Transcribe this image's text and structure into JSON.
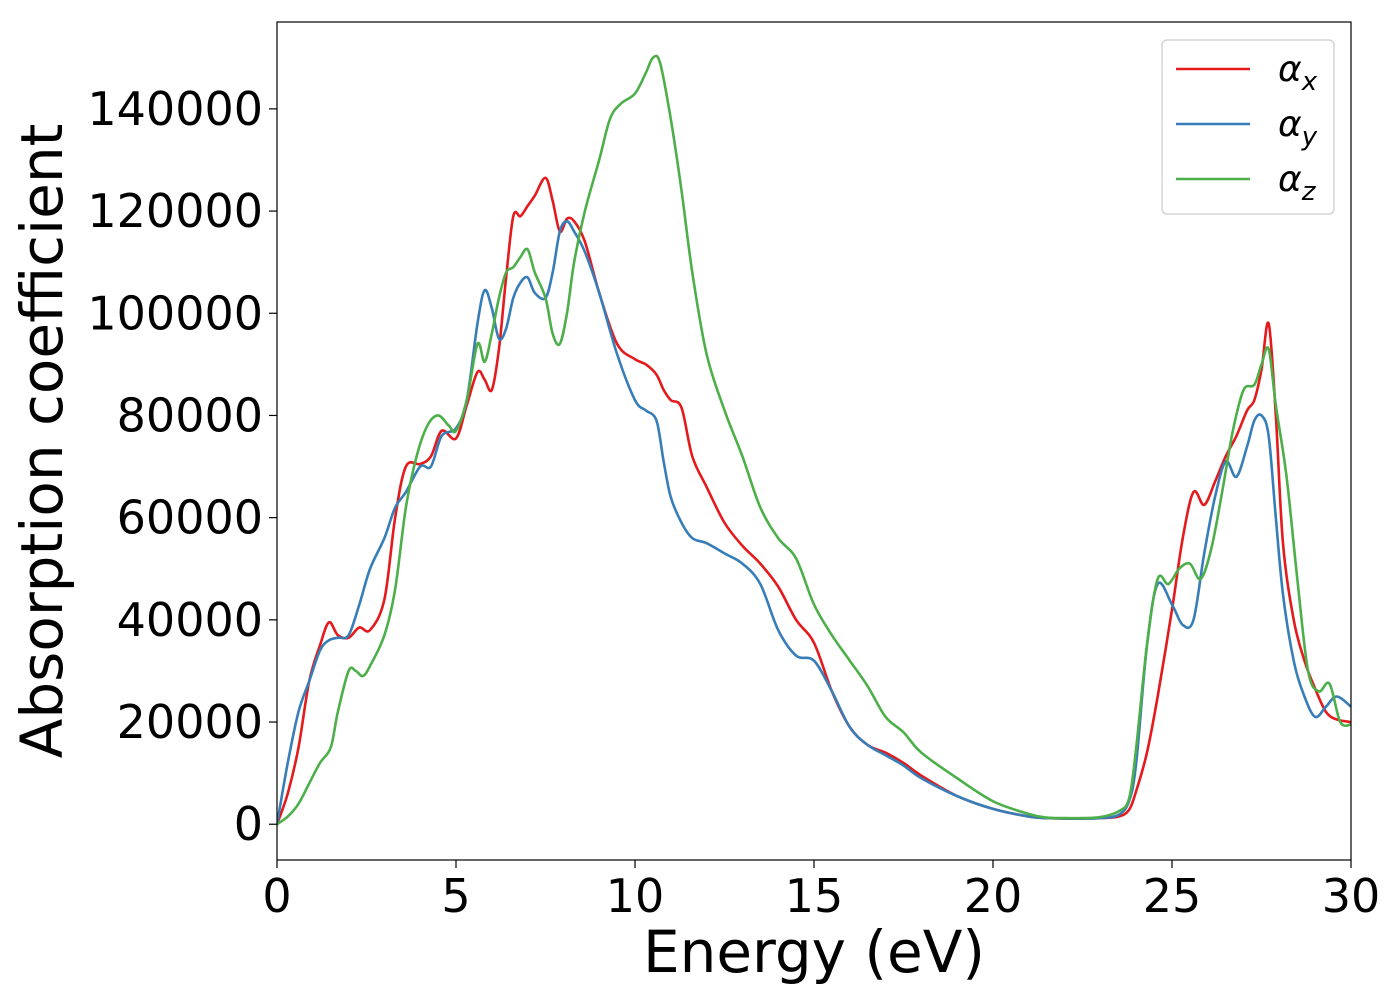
{
  "chart_data": {
    "type": "line",
    "title": "",
    "xlabel": "Energy (eV)",
    "ylabel": "Absorption coefficient",
    "xlim": [
      0,
      30
    ],
    "ylim": [
      -7000,
      157000
    ],
    "xticks": [
      0,
      5,
      10,
      15,
      20,
      25,
      30
    ],
    "xtick_labels": [
      "0",
      "5",
      "10",
      "15",
      "20",
      "25",
      "30"
    ],
    "yticks": [
      0,
      20000,
      40000,
      60000,
      80000,
      100000,
      120000,
      140000
    ],
    "ytick_labels": [
      "0",
      "20000",
      "40000",
      "60000",
      "80000",
      "100000",
      "120000",
      "140000"
    ],
    "grid": false,
    "legend": {
      "placement": "top-right"
    },
    "series": [
      {
        "name": "αx",
        "legend_base": "α",
        "legend_sub": "x",
        "color": "#e41a1c",
        "x": [
          0,
          0.3,
          0.6,
          0.9,
          1.2,
          1.45,
          1.7,
          2.0,
          2.3,
          2.6,
          3.0,
          3.3,
          3.6,
          4.0,
          4.3,
          4.6,
          5.0,
          5.3,
          5.6,
          5.8,
          6.0,
          6.2,
          6.4,
          6.6,
          6.8,
          7.0,
          7.2,
          7.5,
          7.7,
          7.9,
          8.1,
          8.3,
          8.6,
          9.0,
          9.5,
          10.0,
          10.3,
          10.6,
          10.8,
          11.0,
          11.3,
          11.6,
          12.0,
          12.5,
          13.0,
          13.5,
          14.0,
          14.5,
          15.0,
          15.5,
          16.0,
          16.5,
          17.0,
          17.5,
          18.0,
          19.0,
          20.0,
          21.0,
          21.5,
          22.0,
          22.5,
          23.0,
          23.5,
          23.8,
          24.0,
          24.3,
          24.6,
          25.0,
          25.3,
          25.6,
          25.9,
          26.2,
          26.5,
          26.8,
          27.1,
          27.3,
          27.5,
          27.7,
          27.9,
          28.1,
          28.4,
          28.7,
          29.0,
          29.3,
          29.6,
          30.0
        ],
        "y": [
          0,
          6000,
          15000,
          28000,
          35000,
          39500,
          37000,
          36500,
          38500,
          38000,
          44000,
          60000,
          70000,
          70500,
          72000,
          77000,
          75500,
          82000,
          88500,
          87000,
          85000,
          93000,
          107000,
          119000,
          119000,
          121000,
          123000,
          126500,
          122000,
          116000,
          118500,
          118000,
          114000,
          104000,
          94000,
          91000,
          90000,
          88000,
          85000,
          83000,
          81500,
          72000,
          66000,
          59000,
          54500,
          51000,
          46500,
          40000,
          35500,
          26000,
          19000,
          15500,
          14000,
          12000,
          9500,
          5500,
          3000,
          1500,
          1200,
          1100,
          1100,
          1200,
          1500,
          2800,
          6500,
          14000,
          25000,
          42000,
          56000,
          65000,
          62500,
          67000,
          72000,
          76000,
          81000,
          83000,
          89000,
          98000,
          80000,
          55000,
          40000,
          32000,
          26500,
          22000,
          20500,
          20000
        ]
      },
      {
        "name": "αy",
        "legend_base": "α",
        "legend_sub": "y",
        "color": "#377eb8",
        "x": [
          0,
          0.3,
          0.6,
          0.9,
          1.2,
          1.45,
          1.7,
          2.0,
          2.3,
          2.6,
          3.0,
          3.3,
          3.6,
          4.0,
          4.3,
          4.6,
          5.0,
          5.3,
          5.6,
          5.8,
          6.0,
          6.2,
          6.4,
          6.6,
          6.8,
          7.0,
          7.2,
          7.5,
          7.7,
          7.9,
          8.1,
          8.3,
          8.6,
          9.0,
          9.5,
          10.0,
          10.3,
          10.6,
          10.8,
          11.0,
          11.3,
          11.6,
          12.0,
          12.5,
          13.0,
          13.5,
          14.0,
          14.5,
          15.0,
          15.5,
          16.0,
          16.5,
          17.0,
          17.5,
          18.0,
          19.0,
          20.0,
          21.0,
          21.5,
          22.0,
          22.5,
          23.0,
          23.5,
          23.8,
          24.0,
          24.3,
          24.6,
          25.0,
          25.3,
          25.6,
          25.9,
          26.2,
          26.5,
          26.8,
          27.1,
          27.3,
          27.5,
          27.7,
          27.9,
          28.1,
          28.4,
          28.7,
          29.0,
          29.3,
          29.6,
          30.0
        ],
        "y": [
          0,
          12000,
          22000,
          28000,
          34000,
          36000,
          36500,
          37000,
          43000,
          50000,
          56000,
          62000,
          65000,
          70000,
          70000,
          76000,
          77500,
          83000,
          98000,
          104500,
          101000,
          95000,
          97000,
          103000,
          106000,
          107000,
          104000,
          103000,
          108000,
          116000,
          118000,
          116000,
          112000,
          104000,
          92000,
          83000,
          81000,
          79000,
          71000,
          64000,
          59000,
          56000,
          55000,
          53000,
          51000,
          47000,
          38000,
          33000,
          32000,
          26000,
          19000,
          15500,
          13500,
          11500,
          9000,
          5500,
          3000,
          1500,
          1200,
          1100,
          1100,
          1200,
          1800,
          4500,
          12000,
          35000,
          47000,
          43000,
          39000,
          40000,
          53000,
          64000,
          71000,
          68000,
          74000,
          79000,
          80000,
          76000,
          60000,
          45000,
          32000,
          25000,
          21000,
          23000,
          25000,
          23000
        ]
      },
      {
        "name": "αz",
        "legend_base": "α",
        "legend_sub": "z",
        "color": "#4daf4a",
        "x": [
          0,
          0.3,
          0.6,
          0.9,
          1.2,
          1.5,
          1.7,
          2.0,
          2.2,
          2.4,
          2.6,
          3.0,
          3.3,
          3.6,
          3.9,
          4.2,
          4.5,
          4.8,
          5.0,
          5.3,
          5.6,
          5.8,
          6.0,
          6.2,
          6.4,
          6.6,
          6.8,
          7.0,
          7.2,
          7.5,
          7.7,
          7.9,
          8.1,
          8.3,
          8.6,
          9.0,
          9.3,
          9.6,
          10.0,
          10.3,
          10.5,
          10.7,
          11.0,
          11.3,
          11.6,
          12.0,
          12.5,
          13.0,
          13.5,
          14.0,
          14.5,
          15.0,
          15.5,
          16.0,
          16.5,
          17.0,
          17.5,
          18.0,
          19.0,
          20.0,
          21.0,
          21.5,
          22.0,
          22.5,
          23.0,
          23.5,
          23.8,
          24.0,
          24.3,
          24.6,
          24.9,
          25.2,
          25.5,
          25.8,
          26.1,
          26.4,
          26.7,
          27.0,
          27.3,
          27.5,
          27.7,
          27.9,
          28.2,
          28.5,
          28.8,
          29.1,
          29.4,
          29.7,
          30.0
        ],
        "y": [
          0,
          1500,
          4000,
          8000,
          12000,
          15000,
          22000,
          30000,
          30000,
          29000,
          31000,
          37000,
          46000,
          62000,
          72000,
          78000,
          80000,
          78000,
          77000,
          83000,
          94000,
          90500,
          96000,
          103000,
          108000,
          109000,
          111000,
          112500,
          108000,
          103000,
          96000,
          94000,
          100000,
          110000,
          120000,
          130000,
          138000,
          141000,
          143000,
          147000,
          150000,
          149000,
          138000,
          124000,
          108000,
          92000,
          81000,
          72000,
          62000,
          56000,
          52000,
          43000,
          37000,
          32000,
          27000,
          21000,
          18000,
          14000,
          9000,
          4500,
          2000,
          1300,
          1200,
          1200,
          1400,
          2500,
          5000,
          15000,
          35000,
          48000,
          47000,
          50000,
          51000,
          48000,
          54000,
          65000,
          77000,
          85000,
          86000,
          90000,
          93000,
          82000,
          68000,
          48000,
          30000,
          26000,
          27500,
          20000,
          19500
        ]
      }
    ]
  }
}
